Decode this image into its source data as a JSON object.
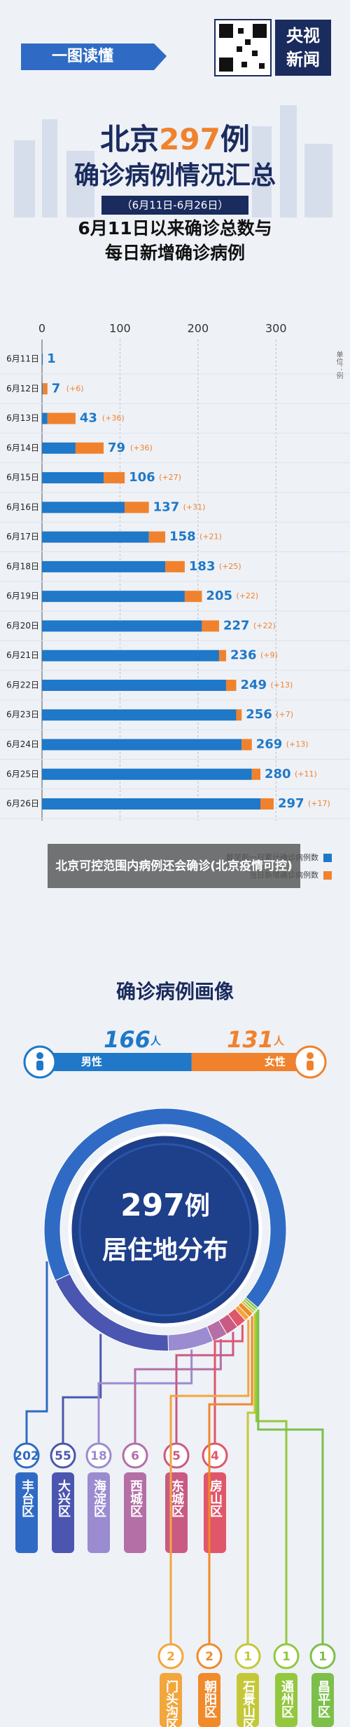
{
  "header": {
    "banner": "一图读懂",
    "logo_top": "央视",
    "logo_bottom": "新闻"
  },
  "title": {
    "part1": "北京",
    "number": 297,
    "part3": "例",
    "line2": "确诊病例情况汇总",
    "subtitle": "（6月11日-6月26日）"
  },
  "caption": "北京可控范围内病例还会确诊(北京疫情可控)",
  "chart_data": [
    {
      "type": "bar",
      "orientation": "horizontal",
      "stacked": true,
      "title_lines": [
        "6月11日以来确诊总数与",
        "每日新增确诊病例"
      ],
      "categories": [
        "6月11日",
        "6月12日",
        "6月13日",
        "6月14日",
        "6月15日",
        "6月16日",
        "6月17日",
        "6月18日",
        "6月19日",
        "6月20日",
        "6月21日",
        "6月22日",
        "6月23日",
        "6月24日",
        "6月25日",
        "6月26日"
      ],
      "series": [
        {
          "name": "截至前一日累计确诊病例数",
          "color": "#1f78c8",
          "values": [
            1,
            1,
            7,
            43,
            79,
            106,
            137,
            158,
            183,
            205,
            227,
            236,
            249,
            256,
            269,
            280
          ]
        },
        {
          "name": "当日新增确诊病例数",
          "color": "#f0822d",
          "values": [
            null,
            6,
            36,
            36,
            27,
            31,
            21,
            25,
            22,
            22,
            9,
            13,
            7,
            13,
            11,
            17
          ],
          "value_labels": [
            null,
            "(+6)",
            "(+36)",
            "(+36)",
            "(+27)",
            "(+31)",
            "(+21)",
            "(+25)",
            "(+22)",
            "(+22)",
            "(+9)",
            "(+13)",
            "(+7)",
            "(+13)",
            "(+11)",
            "(+17)"
          ]
        }
      ],
      "totals": [
        1,
        7,
        43,
        79,
        106,
        137,
        158,
        183,
        205,
        227,
        236,
        249,
        256,
        269,
        280,
        297
      ],
      "xlim": [
        0,
        350
      ],
      "xticks": [
        0,
        100,
        200,
        300
      ],
      "unit_label": "单位：例",
      "grid": true,
      "legend": "bottom-right"
    },
    {
      "type": "ratio-bar",
      "title": "确诊病例画像",
      "categories": [
        "男性",
        "女性"
      ],
      "values": [
        166,
        131
      ],
      "unit": "人",
      "colors": [
        "#1f78c8",
        "#f0822d"
      ]
    },
    {
      "type": "donut",
      "center_value": 297,
      "center_unit": "例",
      "center_text": "居住地分布",
      "categories": [
        "丰台区",
        "大兴区",
        "海淀区",
        "西城区",
        "东城区",
        "房山区",
        "门头沟区",
        "朝阳区",
        "石景山区",
        "通州区",
        "昌平区"
      ],
      "values": [
        202,
        55,
        18,
        6,
        5,
        4,
        2,
        2,
        1,
        1,
        1
      ],
      "colors": [
        "#2f6bc4",
        "#4a56b0",
        "#9b8bd0",
        "#b46fa6",
        "#c95a82",
        "#e0566a",
        "#f2a63c",
        "#f08a2a",
        "#c4c838",
        "#93c83e",
        "#7cc04a"
      ]
    }
  ]
}
